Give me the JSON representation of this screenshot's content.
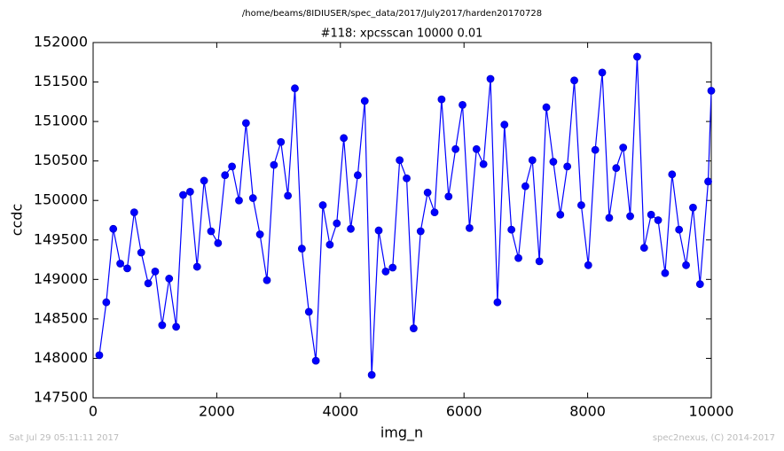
{
  "chart_data": {
    "type": "line",
    "suptitle": "/home/beams/8IDIUSER/spec_data/2017/July2017/harden20170728",
    "title": "#118: xpcsscan 10000 0.01",
    "x_label": "img_n",
    "y_label": "ccdc",
    "footer_left": "Sat Jul 29 05:11:11 2017",
    "footer_right": "spec2nexus, (C) 2014-2017",
    "xlim": [
      0,
      10000
    ],
    "xticks": [
      0,
      2000,
      4000,
      6000,
      8000,
      10000
    ],
    "ylim": [
      147500,
      152000
    ],
    "yticks": [
      147500,
      148000,
      148500,
      149000,
      149500,
      150000,
      150500,
      151000,
      151500,
      152000
    ],
    "grid": false,
    "x": [
      100,
      213,
      326,
      439,
      552,
      665,
      778,
      891,
      1004,
      1117,
      1230,
      1343,
      1456,
      1569,
      1682,
      1795,
      1908,
      2021,
      2134,
      2247,
      2360,
      2473,
      2586,
      2699,
      2812,
      2925,
      3038,
      3151,
      3264,
      3377,
      3490,
      3603,
      3716,
      3829,
      3942,
      4055,
      4168,
      4281,
      4394,
      4507,
      4620,
      4733,
      4846,
      4959,
      5072,
      5185,
      5298,
      5411,
      5524,
      5637,
      5750,
      5863,
      5976,
      6089,
      6202,
      6315,
      6428,
      6541,
      6654,
      6767,
      6880,
      6993,
      7106,
      7219,
      7332,
      7445,
      7558,
      7671,
      7784,
      7897,
      8010,
      8123,
      8236,
      8349,
      8462,
      8575,
      8688,
      8801,
      8914,
      9027,
      9140,
      9253,
      9366,
      9479,
      9592,
      9705,
      9818,
      9950,
      10000
    ],
    "series": [
      {
        "color": "#0000ff",
        "marker_color": "#0000cc",
        "values": [
          148040,
          148710,
          149640,
          149200,
          149140,
          149850,
          149340,
          148950,
          149100,
          148420,
          149010,
          148400,
          150070,
          150110,
          149160,
          150250,
          149610,
          149460,
          150320,
          150430,
          150000,
          150980,
          150030,
          149570,
          148990,
          150450,
          150740,
          150060,
          151420,
          149390,
          148590,
          147970,
          149940,
          149440,
          149710,
          150790,
          149640,
          150320,
          151260,
          147790,
          149620,
          149100,
          149150,
          150510,
          150280,
          148380,
          149610,
          150100,
          149850,
          151280,
          150050,
          150650,
          151210,
          149650,
          150650,
          150460,
          151540,
          148710,
          150960,
          149630,
          149270,
          150180,
          150510,
          149230,
          151180,
          150490,
          149820,
          150430,
          151520,
          149940,
          149180,
          150640,
          151620,
          149780,
          150410,
          150670,
          149800,
          151820,
          149400,
          149820,
          149750,
          149080,
          150330,
          149630,
          149180,
          149910,
          148940,
          150240,
          151390
        ]
      }
    ]
  }
}
